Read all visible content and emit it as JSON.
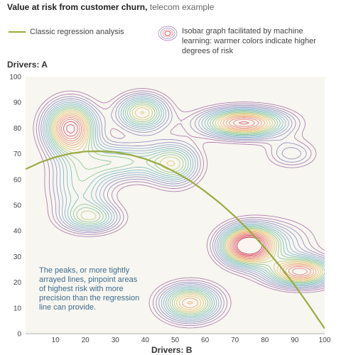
{
  "header": {
    "title_bold": "Value at risk from customer churn,",
    "title_rest": " telecom example"
  },
  "legend": {
    "regression_label": "Classic regression analysis",
    "isobar_label_line1": "Isobar graph facilitated by machine",
    "isobar_label_line2": "learning: warmer colors indicate higher",
    "isobar_label_line3": "degrees of risk"
  },
  "annotation": {
    "line1": "The peaks, or more tightly",
    "line2": "arrayed lines, pinpoint areas",
    "line3": "of highest risk with more",
    "line4": "precision than the regression",
    "line5": "line can provide."
  },
  "colors": {
    "regression": "#9aab3f",
    "plot_background": "#f7f6f0",
    "annotation_text": "#3d6c8f",
    "isobar_levels": [
      "#b07fb3",
      "#9a93c4",
      "#8fb0cf",
      "#7fbfc1",
      "#93c99a",
      "#c6cf85",
      "#e7c77c",
      "#eea779",
      "#e98580",
      "#dd5a6c",
      "#c8324e"
    ]
  },
  "chart_data": {
    "type": "contour",
    "xlabel": "Drivers: B",
    "ylabel": "Drivers: A",
    "xlim": [
      0,
      100
    ],
    "ylim": [
      0,
      100
    ],
    "x_ticks": [
      10,
      20,
      30,
      40,
      50,
      60,
      70,
      80,
      90,
      100
    ],
    "y_ticks": [
      0,
      10,
      20,
      30,
      40,
      50,
      60,
      70,
      80,
      90,
      100
    ],
    "grid": false,
    "series": [
      {
        "name": "Classic regression analysis",
        "kind": "line",
        "x": [
          0,
          5,
          10,
          15,
          20,
          25,
          30,
          35,
          40,
          45,
          50,
          55,
          60,
          65,
          70,
          75,
          80,
          85,
          90,
          95,
          100
        ],
        "y": [
          64.0,
          66.7,
          68.7,
          70.1,
          70.9,
          71.0,
          70.6,
          69.6,
          68.0,
          65.8,
          62.9,
          59.5,
          55.4,
          50.8,
          45.6,
          39.8,
          33.4,
          26.4,
          18.8,
          10.6,
          2.0
        ]
      }
    ],
    "risk_peaks": [
      {
        "x": 15,
        "y": 80,
        "intensity": 1.0,
        "sx": 6,
        "sy": 7
      },
      {
        "x": 39,
        "y": 86,
        "intensity": 0.7,
        "sx": 6,
        "sy": 5
      },
      {
        "x": 73,
        "y": 82,
        "intensity": 0.95,
        "sx": 10,
        "sy": 4
      },
      {
        "x": 89,
        "y": 70,
        "intensity": 0.3,
        "sx": 6,
        "sy": 4
      },
      {
        "x": 32,
        "y": 67,
        "intensity": 0.5,
        "sx": 10,
        "sy": 5
      },
      {
        "x": 22,
        "y": 45,
        "intensity": 0.5,
        "sx": 7,
        "sy": 4
      },
      {
        "x": 18,
        "y": 57,
        "intensity": 0.45,
        "sx": 7,
        "sy": 8
      },
      {
        "x": 50,
        "y": 66,
        "intensity": 0.55,
        "sx": 6,
        "sy": 6
      },
      {
        "x": 74,
        "y": 34,
        "intensity": 1.0,
        "sx": 6,
        "sy": 5
      },
      {
        "x": 92,
        "y": 24,
        "intensity": 0.9,
        "sx": 8,
        "sy": 4
      },
      {
        "x": 82,
        "y": 36,
        "intensity": 0.35,
        "sx": 10,
        "sy": 6
      },
      {
        "x": 55,
        "y": 12,
        "intensity": 0.8,
        "sx": 7,
        "sy": 5
      }
    ]
  }
}
